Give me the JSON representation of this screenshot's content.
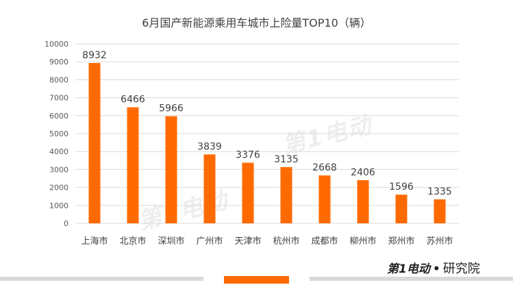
{
  "chart_data": {
    "type": "bar",
    "title": "6月国产新能源乘用车城市上险量TOP10（辆）",
    "categories": [
      "上海市",
      "北京市",
      "深圳市",
      "广州市",
      "天津市",
      "杭州市",
      "成都市",
      "柳州市",
      "郑州市",
      "苏州市"
    ],
    "values": [
      8932,
      6466,
      5966,
      3839,
      3376,
      3135,
      2668,
      2406,
      1596,
      1335
    ],
    "ylim": [
      0,
      10000
    ],
    "yticks": [
      0,
      1000,
      2000,
      3000,
      4000,
      5000,
      6000,
      7000,
      8000,
      9000,
      10000
    ],
    "xlabel": "",
    "ylabel": "",
    "grid": true,
    "legend": "none",
    "bar_color": "#ff6a00",
    "grid_color": "#d9d9d9"
  },
  "watermarks": [
    "第1电动",
    "第1电动"
  ],
  "footer": {
    "brand": "第1电动",
    "separator": "•",
    "research": "研究院"
  },
  "colors": {
    "accent": "#ff6a00",
    "text": "#404040"
  }
}
